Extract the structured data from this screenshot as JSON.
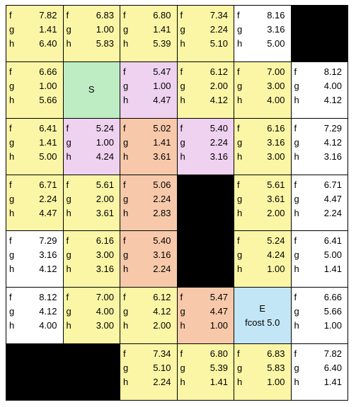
{
  "colors": {
    "open": "#FBF6A6",
    "closed": "#ffffff",
    "start": "#BEEDC4",
    "neighbor": "#EED2EF",
    "path": "#F7C9AA",
    "end": "#C3E6F6",
    "wall": "#000000"
  },
  "grid": {
    "rows": [
      [
        {
          "type": "open",
          "f": "7.82",
          "g": "1.41",
          "h": "6.40"
        },
        {
          "type": "open",
          "f": "6.83",
          "g": "1.00",
          "h": "5.83"
        },
        {
          "type": "open",
          "f": "6.80",
          "g": "1.41",
          "h": "5.39"
        },
        {
          "type": "open",
          "f": "7.34",
          "g": "2.24",
          "h": "5.10"
        },
        {
          "type": "closed",
          "f": "8.16",
          "g": "3.16",
          "h": "5.00"
        },
        {
          "type": "wall"
        }
      ],
      [
        {
          "type": "open",
          "f": "6.66",
          "g": "1.00",
          "h": "5.66"
        },
        {
          "type": "start",
          "label": "S"
        },
        {
          "type": "neighbor",
          "f": "5.47",
          "g": "1.00",
          "h": "4.47"
        },
        {
          "type": "open",
          "f": "6.12",
          "g": "2.00",
          "h": "4.12"
        },
        {
          "type": "open",
          "f": "7.00",
          "g": "3.00",
          "h": "4.00"
        },
        {
          "type": "closed",
          "f": "8.12",
          "g": "4.00",
          "h": "4.12"
        }
      ],
      [
        {
          "type": "open",
          "f": "6.41",
          "g": "1.41",
          "h": "5.00"
        },
        {
          "type": "neighbor",
          "f": "5.24",
          "g": "1.00",
          "h": "4.24"
        },
        {
          "type": "path",
          "f": "5.02",
          "g": "1.41",
          "h": "3.61"
        },
        {
          "type": "neighbor",
          "f": "5.40",
          "g": "2.24",
          "h": "3.16"
        },
        {
          "type": "open",
          "f": "6.16",
          "g": "3.16",
          "h": "3.00"
        },
        {
          "type": "closed",
          "f": "7.29",
          "g": "4.12",
          "h": "3.16"
        }
      ],
      [
        {
          "type": "open",
          "f": "6.71",
          "g": "2.24",
          "h": "4.47"
        },
        {
          "type": "open",
          "f": "5.61",
          "g": "2.00",
          "h": "3.61"
        },
        {
          "type": "path",
          "f": "5.06",
          "g": "2.24",
          "h": "2.83"
        },
        {
          "type": "wall"
        },
        {
          "type": "open",
          "f": "5.61",
          "g": "3.61",
          "h": "2.00"
        },
        {
          "type": "closed",
          "f": "6.71",
          "g": "4.47",
          "h": "2.24"
        }
      ],
      [
        {
          "type": "closed",
          "f": "7.29",
          "g": "3.16",
          "h": "4.12"
        },
        {
          "type": "open",
          "f": "6.16",
          "g": "3.00",
          "h": "3.16"
        },
        {
          "type": "path",
          "f": "5.40",
          "g": "3.16",
          "h": "2.24"
        },
        {
          "type": "wall"
        },
        {
          "type": "open",
          "f": "5.24",
          "g": "4.24",
          "h": "1.00"
        },
        {
          "type": "closed",
          "f": "6.41",
          "g": "5.00",
          "h": "1.41"
        }
      ],
      [
        {
          "type": "closed",
          "f": "8.12",
          "g": "4.12",
          "h": "4.00"
        },
        {
          "type": "open",
          "f": "7.00",
          "g": "4.00",
          "h": "3.00"
        },
        {
          "type": "open",
          "f": "6.12",
          "g": "4.12",
          "h": "2.00"
        },
        {
          "type": "path",
          "f": "5.47",
          "g": "4.47",
          "h": "1.00"
        },
        {
          "type": "end",
          "label": "E",
          "sublabel": "fcost 5.0"
        },
        {
          "type": "closed",
          "f": "6.66",
          "g": "5.66",
          "h": "1.00"
        }
      ],
      [
        {
          "type": "wall",
          "merged": true
        },
        {
          "type": "open",
          "f": "7.34",
          "g": "5.10",
          "h": "2.24"
        },
        {
          "type": "open",
          "f": "6.80",
          "g": "5.39",
          "h": "1.41"
        },
        {
          "type": "open",
          "f": "6.83",
          "g": "5.83",
          "h": "1.00"
        },
        {
          "type": "closed",
          "f": "7.82",
          "g": "6.40",
          "h": "1.41"
        }
      ]
    ]
  }
}
